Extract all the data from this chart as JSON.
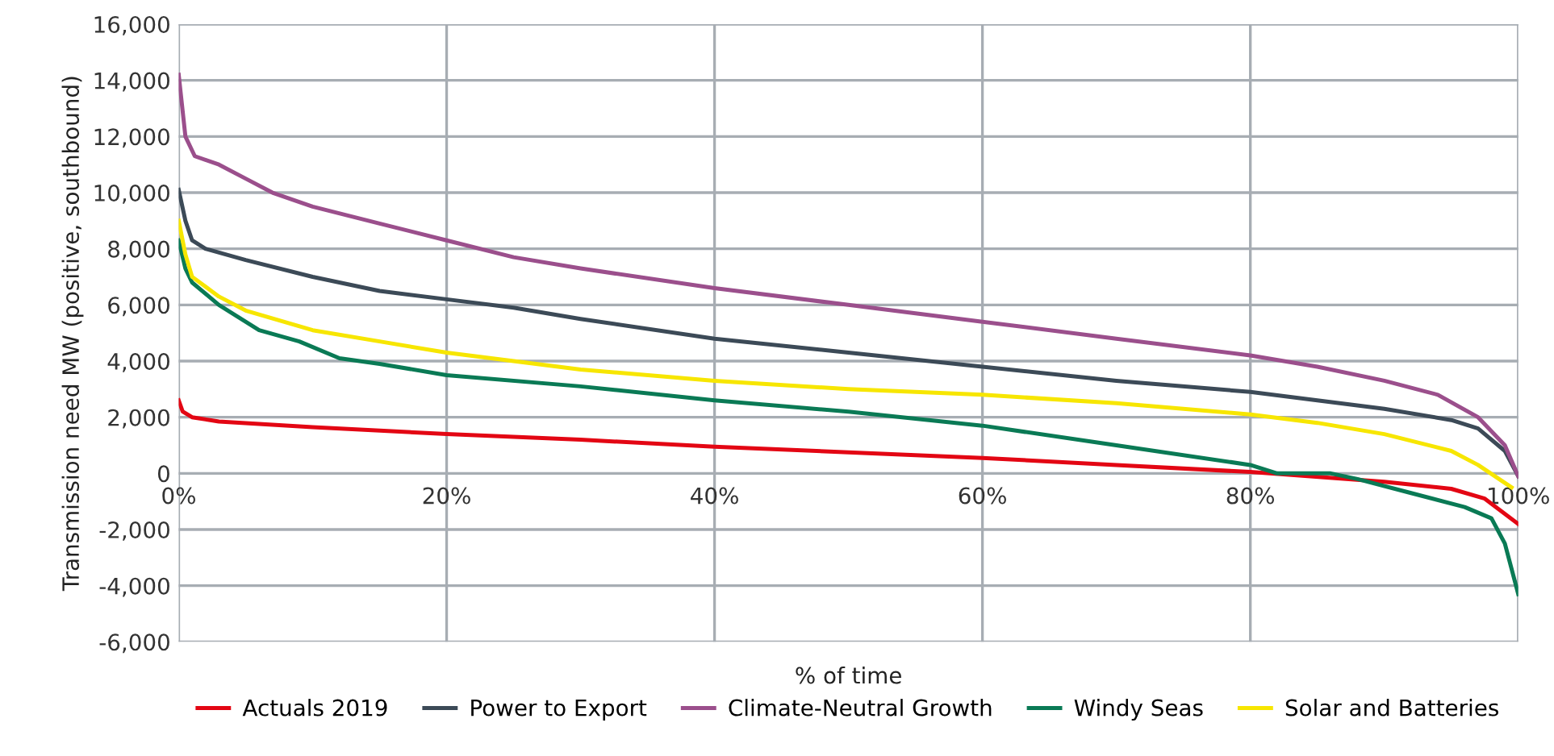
{
  "chart_data": {
    "type": "line",
    "xlabel": "% of time",
    "ylabel": "Transmission need MW (positive, southbound)",
    "xlim": [
      0,
      100
    ],
    "ylim": [
      -6000,
      16000
    ],
    "xticks": [
      {
        "value": 0,
        "label": "0%"
      },
      {
        "value": 20,
        "label": "20%"
      },
      {
        "value": 40,
        "label": "40%"
      },
      {
        "value": 60,
        "label": "60%"
      },
      {
        "value": 80,
        "label": "80%"
      },
      {
        "value": 100,
        "label": "100%"
      }
    ],
    "yticks": [
      {
        "value": -6000,
        "label": "-6,000"
      },
      {
        "value": -4000,
        "label": "-4,000"
      },
      {
        "value": -2000,
        "label": "-2,000"
      },
      0,
      {
        "value": 2000,
        "label": "2,000"
      },
      {
        "value": 4000,
        "label": "4,000"
      },
      {
        "value": 6000,
        "label": "6,000"
      },
      {
        "value": 8000,
        "label": "8,000"
      },
      {
        "value": 10000,
        "label": "10,000"
      },
      {
        "value": 12000,
        "label": "12,000"
      },
      {
        "value": 14000,
        "label": "14,000"
      },
      {
        "value": 16000,
        "label": "16,000"
      }
    ],
    "grid": true,
    "legend": "bottom",
    "marker": "none",
    "line_style": "solid",
    "series": [
      {
        "name": "Actuals 2019",
        "color": "#e30613",
        "x": [
          0,
          0.3,
          1,
          3,
          10,
          20,
          30,
          40,
          50,
          60,
          70,
          80,
          90,
          95,
          97.5,
          100
        ],
        "values": [
          2600,
          2200,
          2000,
          1850,
          1650,
          1400,
          1200,
          950,
          750,
          550,
          300,
          50,
          -300,
          -550,
          -900,
          -1800
        ]
      },
      {
        "name": "Power to Export",
        "color": "#3c4a57",
        "x": [
          0,
          0.5,
          1,
          2,
          5,
          10,
          15,
          20,
          25,
          30,
          40,
          50,
          60,
          70,
          80,
          85,
          90,
          95,
          97,
          99,
          100
        ],
        "values": [
          10100,
          9000,
          8300,
          8000,
          7600,
          7000,
          6500,
          6200,
          5900,
          5500,
          4800,
          4300,
          3800,
          3300,
          2900,
          2600,
          2300,
          1900,
          1600,
          800,
          -100
        ]
      },
      {
        "name": "Climate-Neutral Growth",
        "color": "#9b4f8c",
        "x": [
          0,
          0.5,
          1.2,
          3,
          5,
          7,
          10,
          15,
          20,
          25,
          30,
          40,
          50,
          60,
          70,
          80,
          85,
          90,
          94,
          97,
          99,
          100
        ],
        "values": [
          14200,
          12000,
          11300,
          11000,
          10500,
          10000,
          9500,
          8900,
          8300,
          7700,
          7300,
          6600,
          6000,
          5400,
          4800,
          4200,
          3800,
          3300,
          2800,
          2000,
          1000,
          -100
        ]
      },
      {
        "name": "Windy Seas",
        "color": "#0a7a55",
        "x": [
          0,
          0.5,
          1,
          3,
          6,
          9,
          12,
          15,
          20,
          30,
          40,
          50,
          60,
          70,
          80,
          82,
          86,
          88,
          92,
          96,
          98,
          99,
          100
        ],
        "values": [
          8300,
          7300,
          6800,
          6000,
          5100,
          4700,
          4100,
          3900,
          3500,
          3100,
          2600,
          2200,
          1700,
          1000,
          300,
          0,
          0,
          -200,
          -700,
          -1200,
          -1600,
          -2500,
          -4300
        ]
      },
      {
        "name": "Solar and Batteries",
        "color": "#f7e600",
        "x": [
          0,
          0.5,
          1,
          3,
          5,
          10,
          15,
          20,
          25,
          30,
          40,
          50,
          60,
          70,
          80,
          85,
          90,
          95,
          97,
          99.5
        ],
        "values": [
          9000,
          7800,
          7000,
          6300,
          5800,
          5100,
          4700,
          4300,
          4000,
          3700,
          3300,
          3000,
          2800,
          2500,
          2100,
          1800,
          1400,
          800,
          300,
          -500
        ]
      }
    ]
  }
}
